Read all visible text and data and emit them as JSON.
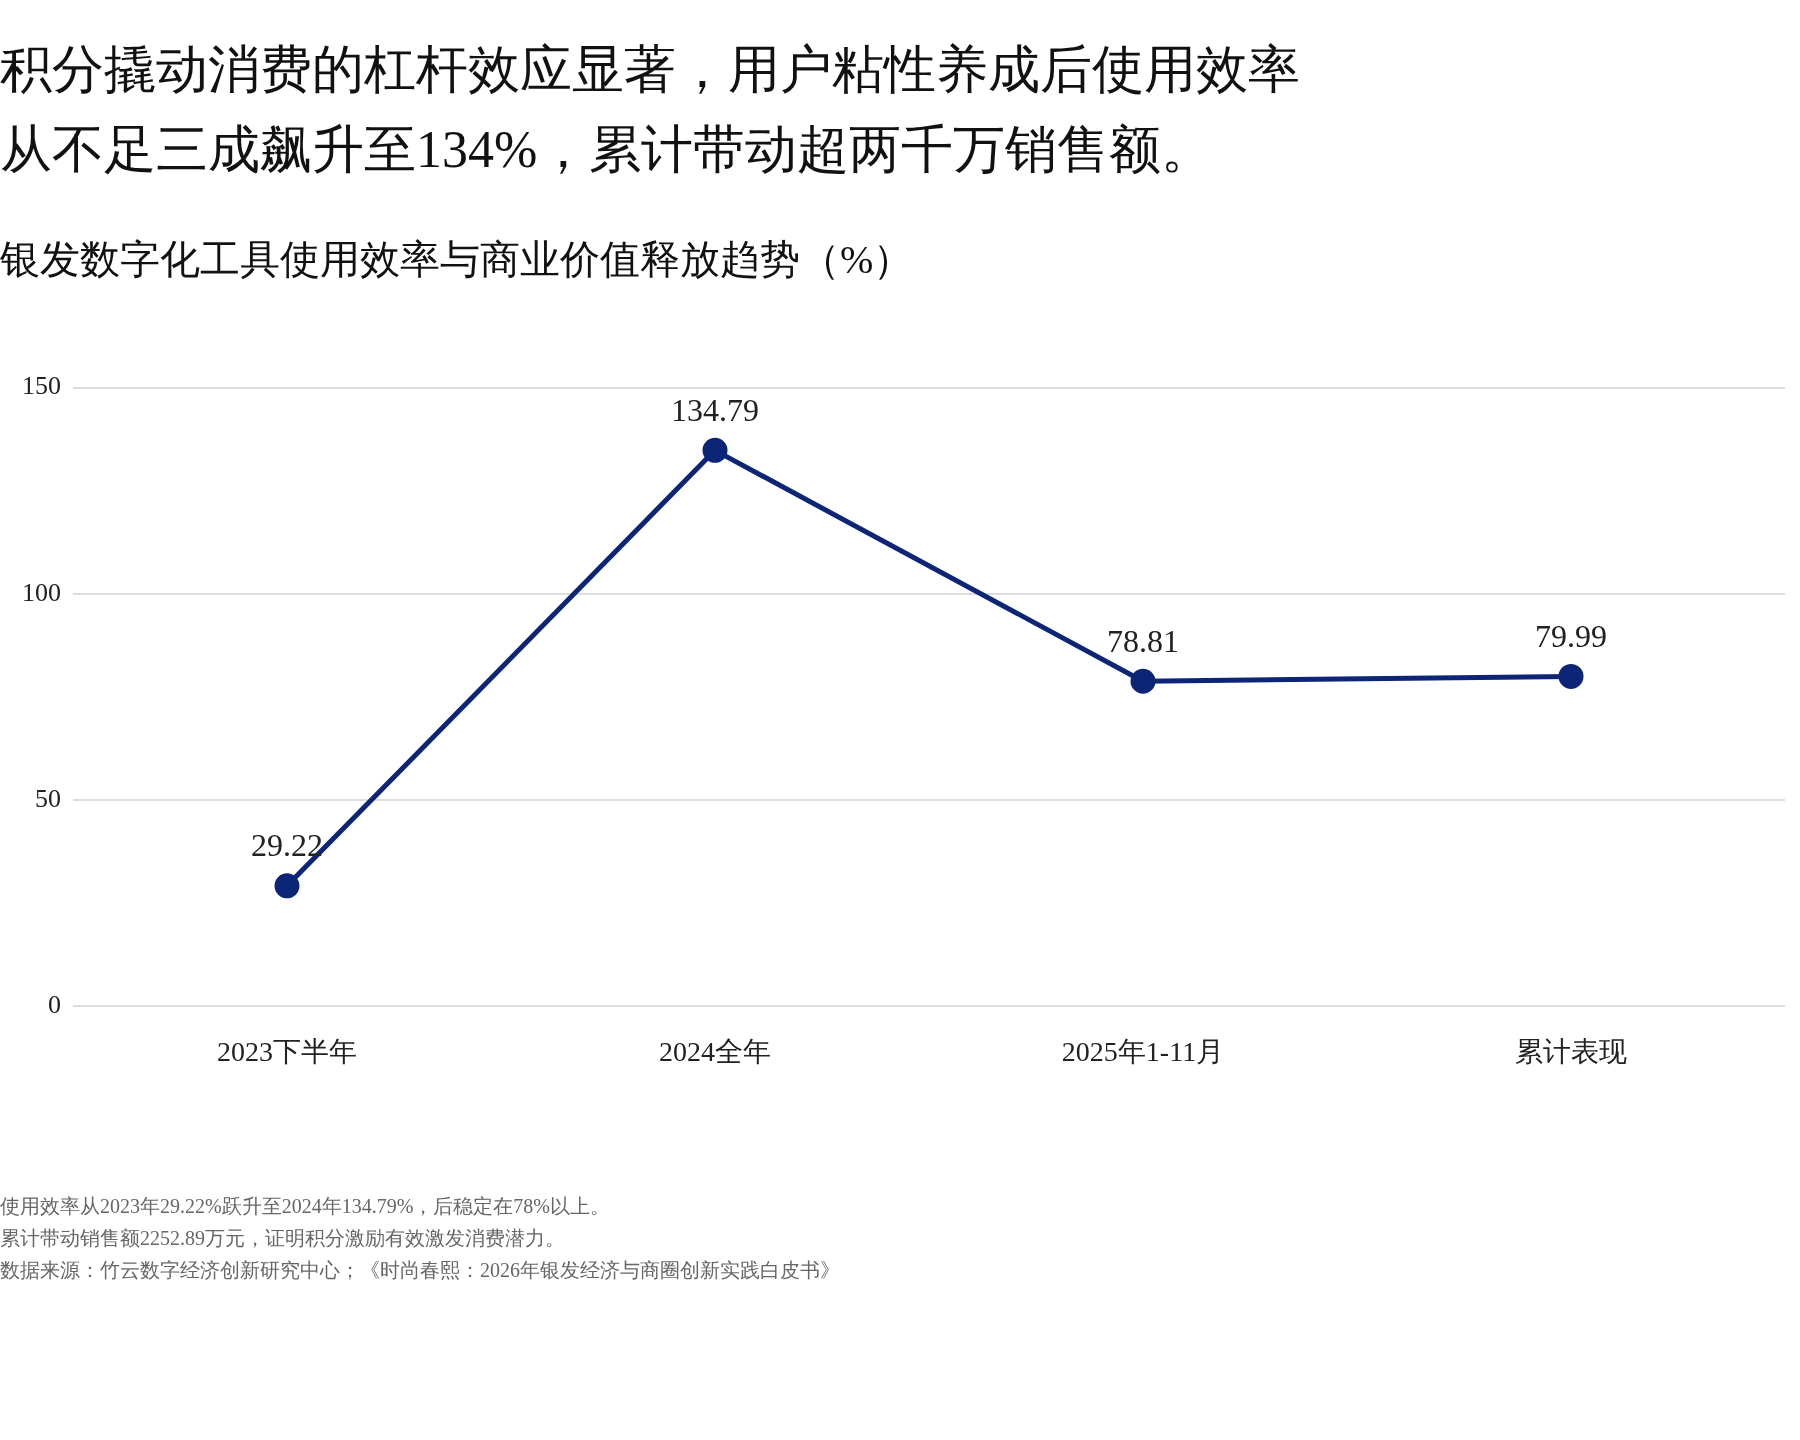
{
  "chart_data": {
    "type": "line",
    "title": "积分撬动消费的杠杆效应显著，用户粘性养成后使用效率从不足三成飙升至134%，累计带动超两千万销售额。",
    "subtitle": "银发数字化工具使用效率与商业价值释放趋势（%）",
    "categories": [
      "2023下半年",
      "2024全年",
      "2025年1-11月",
      "累计表现"
    ],
    "series": [
      {
        "color": "#0d2577",
        "values": [
          29.22,
          134.79,
          78.81,
          79.99
        ]
      }
    ],
    "ylim": [
      0,
      150
    ],
    "yticks": [
      0,
      50,
      100,
      150
    ],
    "grid": "y",
    "legend": false,
    "marker": "circle",
    "line_style": "solid",
    "data_labels": true,
    "annotations": [
      "使用效率从2023年29.22%跃升至2024年134.79%，后稳定在78%以上。",
      "累计带动销售额2252.89万元，证明积分激励有效激发消费潜力。",
      "数据来源：竹云数字经济创新研究中心；《时尚春熙：2026年银发经济与商圈创新实践白皮书》"
    ]
  }
}
